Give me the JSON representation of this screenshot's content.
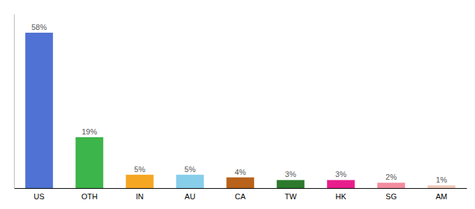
{
  "chart_data": {
    "type": "bar",
    "categories": [
      "US",
      "OTH",
      "IN",
      "AU",
      "CA",
      "TW",
      "HK",
      "SG",
      "AM"
    ],
    "values": [
      58,
      19,
      5,
      5,
      4,
      3,
      3,
      2,
      1
    ],
    "value_labels": [
      "58%",
      "19%",
      "5%",
      "5%",
      "4%",
      "3%",
      "3%",
      "2%",
      "1%"
    ],
    "colors": [
      "#4f72d4",
      "#3cb54a",
      "#f5a623",
      "#87ceeb",
      "#b8621b",
      "#2d7a2d",
      "#e91e8c",
      "#f48ca0",
      "#f0c8b8"
    ],
    "ylim": [
      0,
      65
    ],
    "data_labels": true,
    "grid": false,
    "tick_labels": "x"
  }
}
